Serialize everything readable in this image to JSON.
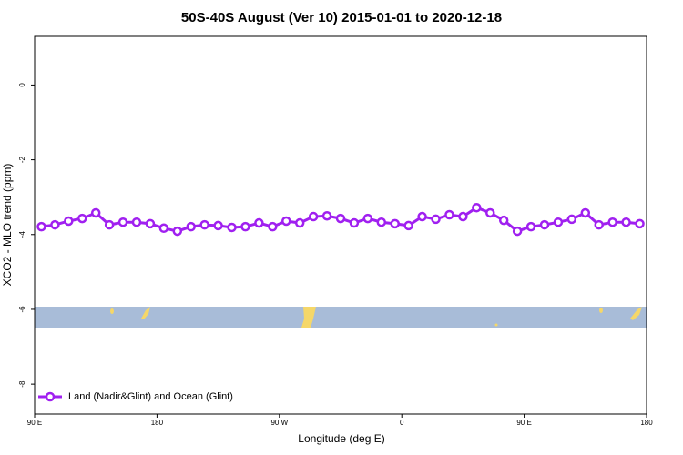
{
  "chart_data": {
    "type": "line",
    "title": "50S-40S August (Ver 10)   2015-01-01 to 2020-12-18",
    "x_label": "Longitude (deg E)",
    "y_label": "XCO2 - MLO trend (ppm)",
    "x": [
      95,
      105,
      115,
      125,
      135,
      145,
      155,
      165,
      175,
      185,
      195,
      205,
      215,
      225,
      235,
      245,
      255,
      265,
      275,
      285,
      295,
      305,
      315,
      325,
      335,
      345,
      355,
      365,
      375,
      385,
      395,
      405,
      415,
      425,
      435,
      445,
      455,
      465,
      475,
      485,
      495,
      505,
      515,
      525,
      535
    ],
    "series": [
      {
        "name": "Land (Nadir&Glint) and Ocean (Glint)",
        "color": "#a020f0",
        "values": [
          -3.79,
          -3.74,
          -3.64,
          -3.57,
          -3.42,
          -3.74,
          -3.67,
          -3.67,
          -3.71,
          -3.83,
          -3.91,
          -3.79,
          -3.74,
          -3.76,
          -3.81,
          -3.79,
          -3.69,
          -3.79,
          -3.64,
          -3.69,
          -3.52,
          -3.5,
          -3.57,
          -3.69,
          -3.57,
          -3.67,
          -3.71,
          -3.76,
          -3.52,
          -3.59,
          -3.47,
          -3.52,
          -3.28,
          -3.42,
          -3.62,
          -3.91,
          -3.79,
          -3.74,
          -3.67,
          -3.59,
          -3.42,
          -3.74,
          -3.67,
          -3.67,
          -3.71
        ]
      }
    ],
    "xlim": [
      90,
      540
    ],
    "ylim": [
      -8.8,
      1.3
    ],
    "xticks": [
      {
        "value": 90,
        "label": "90 E"
      },
      180,
      {
        "value": 270,
        "label": "90 W"
      },
      {
        "value": 360,
        "label": "0"
      },
      {
        "value": 450,
        "label": "90 E"
      },
      {
        "value": 540,
        "label": "180"
      }
    ],
    "yticks": [
      0,
      -2,
      -4,
      -6,
      -8
    ],
    "legend": "bottom-left"
  }
}
